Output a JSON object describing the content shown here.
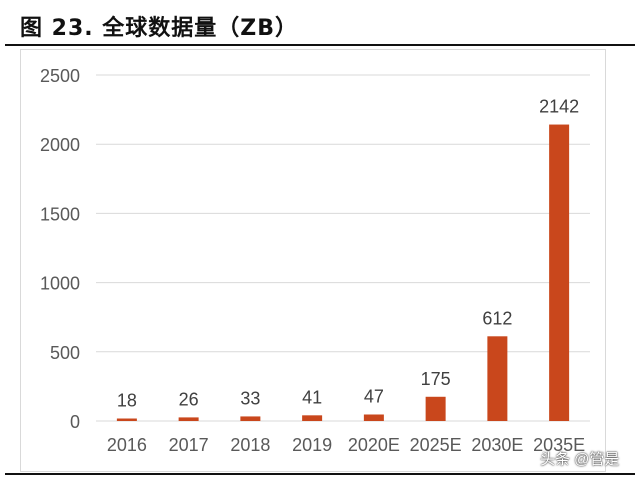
{
  "title": "图 23. 全球数据量（ZB）",
  "watermark": "头条 @管是",
  "chart_data": {
    "type": "bar",
    "title": "全球数据量（ZB）",
    "xlabel": "",
    "ylabel": "",
    "categories": [
      "2016",
      "2017",
      "2018",
      "2019",
      "2020E",
      "2025E",
      "2030E",
      "2035E"
    ],
    "values": [
      18,
      26,
      33,
      41,
      47,
      175,
      612,
      2142
    ],
    "data_labels": [
      "18",
      "26",
      "33",
      "41",
      "47",
      "175",
      "612",
      "2142"
    ],
    "ylim": [
      0,
      2500
    ],
    "yticks": [
      0,
      500,
      1000,
      1500,
      2000,
      2500
    ],
    "grid": true,
    "legend": "none",
    "bar_color": "#C9471C"
  }
}
